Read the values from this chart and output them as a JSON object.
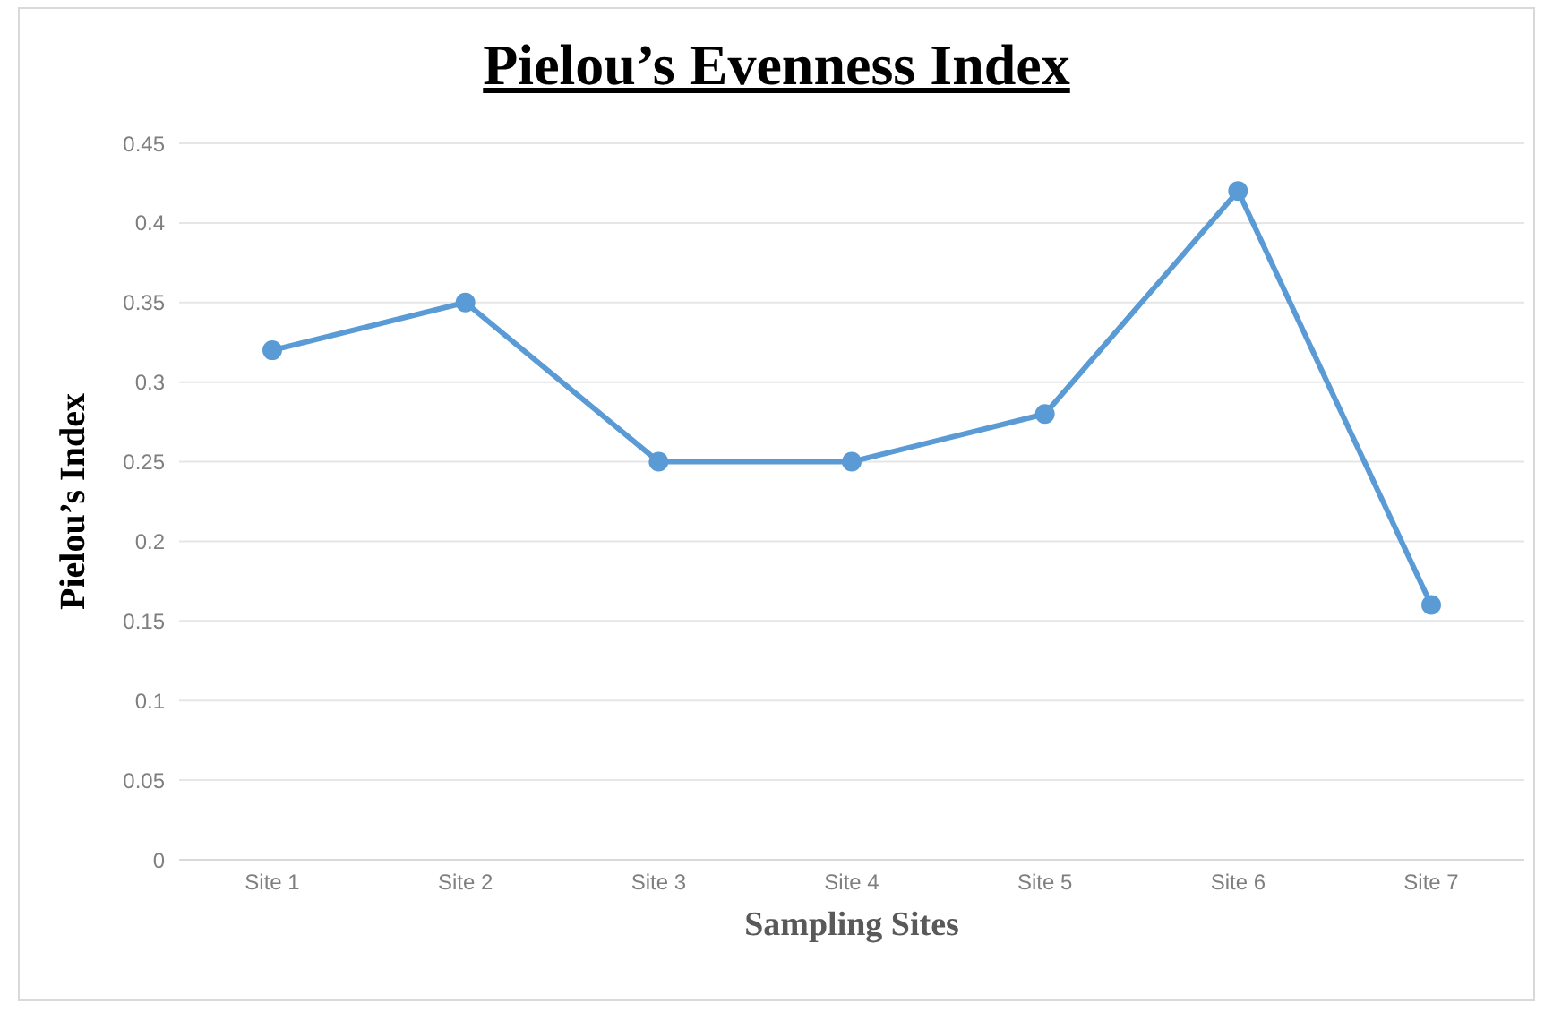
{
  "chart_data": {
    "type": "line",
    "title": "Pielou’s Evenness Index",
    "xlabel": "Sampling Sites",
    "ylabel": "Pielou’s Index",
    "categories": [
      "Site 1",
      "Site 2",
      "Site 3",
      "Site 4",
      "Site 5",
      "Site 6",
      "Site 7"
    ],
    "series": [
      {
        "color": "#5b9bd5",
        "values": [
          0.32,
          0.35,
          0.25,
          0.25,
          0.28,
          0.42,
          0.16
        ]
      }
    ],
    "ylim": [
      0,
      0.45
    ],
    "yticks": [
      0,
      0.05,
      0.1,
      0.15,
      0.2,
      0.25,
      0.3,
      0.35,
      0.4,
      0.45
    ],
    "grid": "y",
    "marker": "circle"
  }
}
